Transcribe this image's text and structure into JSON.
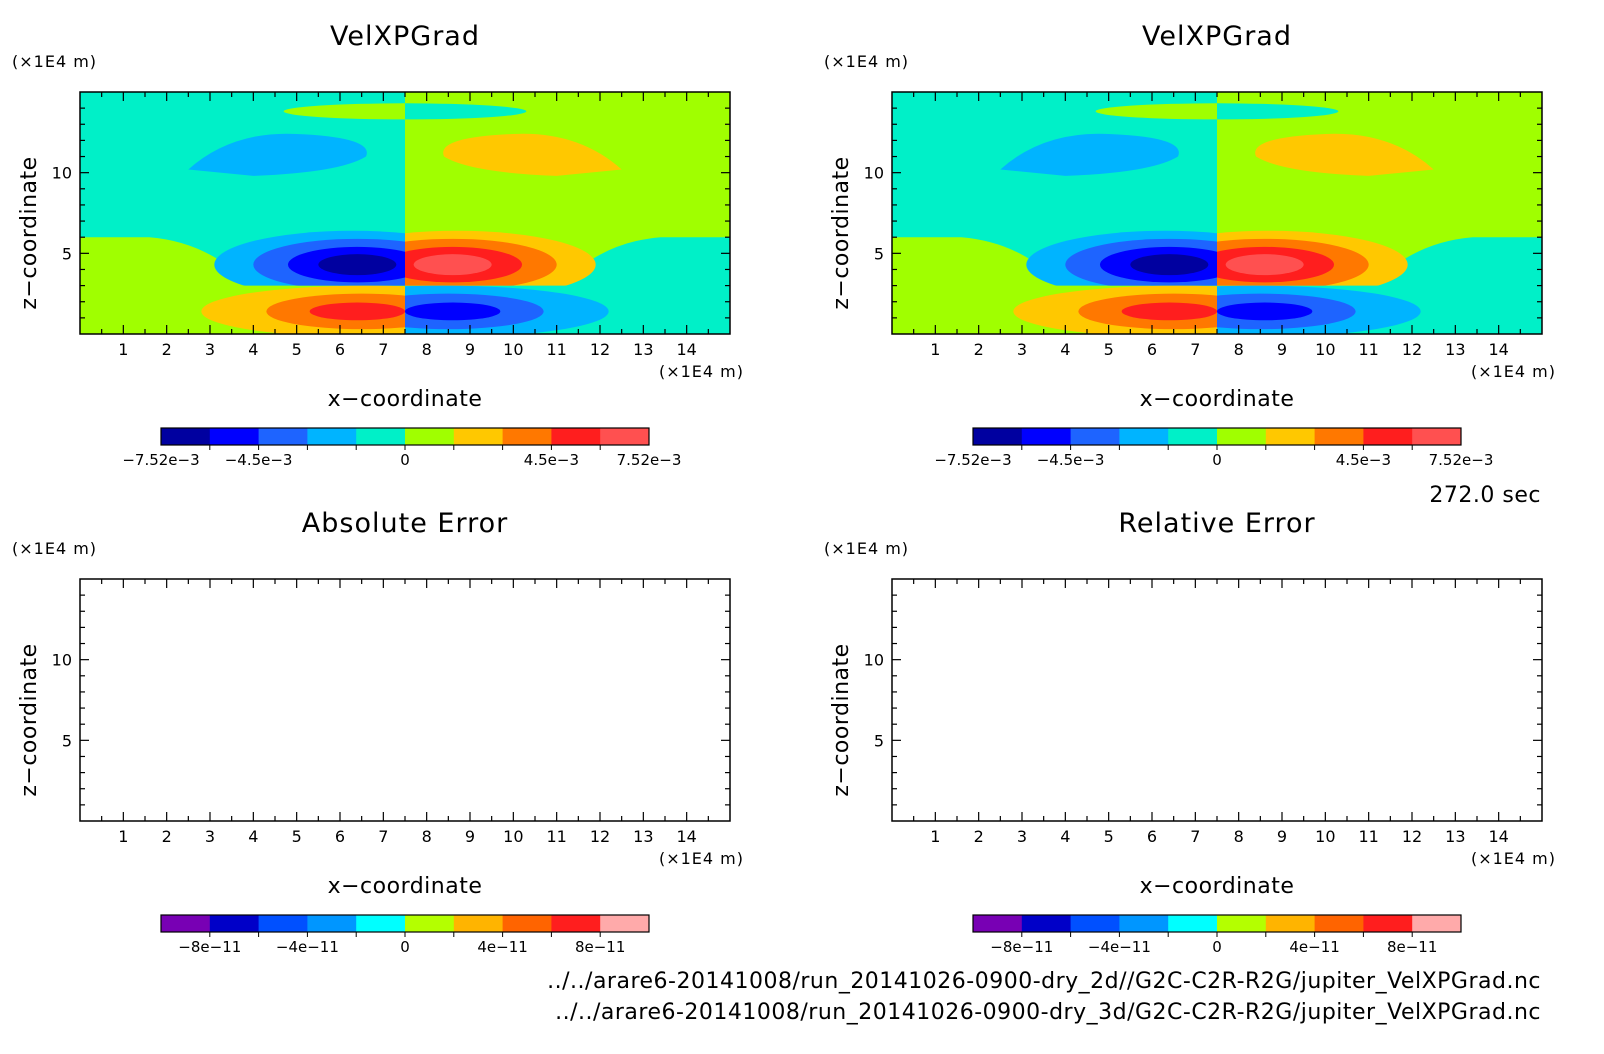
{
  "chart_data": [
    {
      "type": "heatmap",
      "title": "VelXPGrad",
      "xlabel": "x−coordinate",
      "ylabel": "z−coordinate",
      "x_unit": "(×1E4 m)",
      "y_unit": "(×1E4 m)",
      "xlim": [
        0,
        15
      ],
      "ylim": [
        0,
        15
      ],
      "x_ticks": [
        "1",
        "2",
        "3",
        "4",
        "5",
        "6",
        "7",
        "8",
        "9",
        "10",
        "11",
        "12",
        "13",
        "14"
      ],
      "y_ticks": [
        "5",
        "10"
      ],
      "colorbar": {
        "levels": [
          "#0000a0",
          "#0000ff",
          "#1e64ff",
          "#00b4ff",
          "#00f0c8",
          "#a0ff00",
          "#ffc800",
          "#ff7800",
          "#ff1e1e",
          "#ff5050"
        ],
        "ticks": [
          "−7.52e−3",
          "−4.5e−3",
          "0",
          "4.5e−3",
          "7.52e−3"
        ]
      },
      "features": [
        {
          "x": 6.3,
          "z": 4.2,
          "level": 0,
          "kind": "negative core"
        },
        {
          "x": 8.8,
          "z": 4.2,
          "level": 9,
          "kind": "positive core"
        },
        {
          "x": 6.5,
          "z": 1.8,
          "level": 8,
          "kind": "positive lower lobe"
        },
        {
          "x": 8.6,
          "z": 1.8,
          "level": 1,
          "kind": "negative lower lobe"
        },
        {
          "x": 4.5,
          "z": 11.5,
          "level": 3,
          "kind": "negative upper lobe"
        },
        {
          "x": 10.5,
          "z": 11.5,
          "level": 6,
          "kind": "positive upper lobe"
        }
      ]
    },
    {
      "type": "heatmap",
      "title": "VelXPGrad",
      "xlabel": "x−coordinate",
      "ylabel": "z−coordinate",
      "x_unit": "(×1E4 m)",
      "y_unit": "(×1E4 m)",
      "xlim": [
        0,
        15
      ],
      "ylim": [
        0,
        15
      ],
      "x_ticks": [
        "1",
        "2",
        "3",
        "4",
        "5",
        "6",
        "7",
        "8",
        "9",
        "10",
        "11",
        "12",
        "13",
        "14"
      ],
      "y_ticks": [
        "5",
        "10"
      ],
      "colorbar": {
        "levels": [
          "#0000a0",
          "#0000ff",
          "#1e64ff",
          "#00b4ff",
          "#00f0c8",
          "#a0ff00",
          "#ffc800",
          "#ff7800",
          "#ff1e1e",
          "#ff5050"
        ],
        "ticks": [
          "−7.52e−3",
          "−4.5e−3",
          "0",
          "4.5e−3",
          "7.52e−3"
        ]
      }
    },
    {
      "type": "heatmap",
      "title": "Absolute Error",
      "xlabel": "x−coordinate",
      "ylabel": "z−coordinate",
      "x_unit": "(×1E4 m)",
      "y_unit": "(×1E4 m)",
      "xlim": [
        0,
        15
      ],
      "ylim": [
        0,
        15
      ],
      "x_ticks": [
        "1",
        "2",
        "3",
        "4",
        "5",
        "6",
        "7",
        "8",
        "9",
        "10",
        "11",
        "12",
        "13",
        "14"
      ],
      "y_ticks": [
        "5",
        "10"
      ],
      "values": "empty",
      "colorbar": {
        "levels": [
          "#7800b4",
          "#0000c8",
          "#0050ff",
          "#0096ff",
          "#00ffff",
          "#b4ff00",
          "#ffb400",
          "#ff6400",
          "#ff1e1e",
          "#ffaaaa"
        ],
        "ticks": [
          "−8e−11",
          "−4e−11",
          "0",
          "4e−11",
          "8e−11"
        ]
      }
    },
    {
      "type": "heatmap",
      "title": "Relative Error",
      "xlabel": "x−coordinate",
      "ylabel": "z−coordinate",
      "x_unit": "(×1E4 m)",
      "y_unit": "(×1E4 m)",
      "xlim": [
        0,
        15
      ],
      "ylim": [
        0,
        15
      ],
      "x_ticks": [
        "1",
        "2",
        "3",
        "4",
        "5",
        "6",
        "7",
        "8",
        "9",
        "10",
        "11",
        "12",
        "13",
        "14"
      ],
      "y_ticks": [
        "5",
        "10"
      ],
      "values": "empty",
      "colorbar": {
        "levels": [
          "#7800b4",
          "#0000c8",
          "#0050ff",
          "#0096ff",
          "#00ffff",
          "#b4ff00",
          "#ffb400",
          "#ff6400",
          "#ff1e1e",
          "#ffaaaa"
        ],
        "ticks": [
          "−8e−11",
          "−4e−11",
          "0",
          "4e−11",
          "8e−11"
        ]
      }
    }
  ],
  "time_label": "272.0 sec",
  "footer": [
    "../../arare6-20141008/run_20141026-0900-dry_2d//G2C-C2R-R2G/jupiter_VelXPGrad.nc",
    "../../arare6-20141008/run_20141026-0900-dry_3d/G2C-C2R-R2G/jupiter_VelXPGrad.nc"
  ]
}
